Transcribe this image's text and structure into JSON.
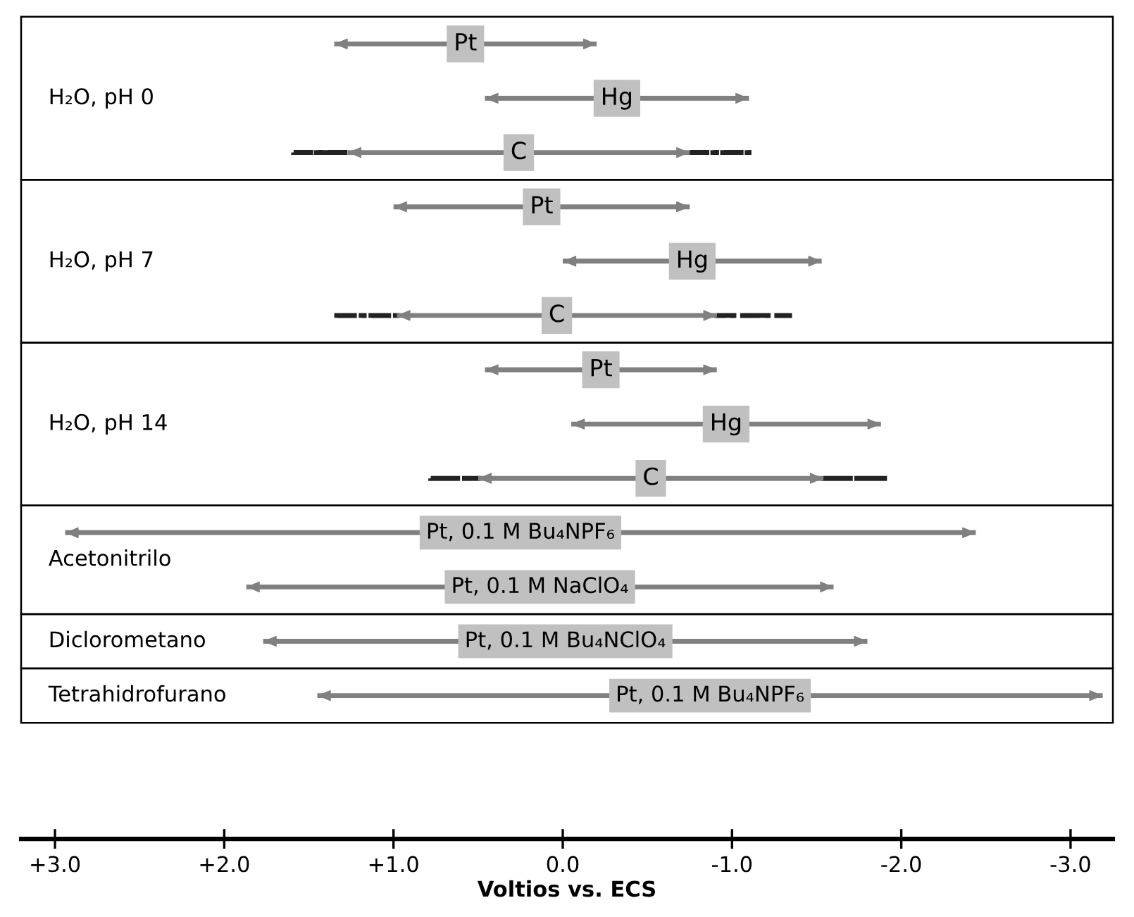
{
  "chart_data": {
    "type": "bar",
    "orientation": "horizontal",
    "categories": [
      "Pt",
      "Hg",
      "C",
      "Pt",
      "Hg",
      "C",
      "Pt",
      "Hg",
      "C",
      "Pt, 0.1 M Bu₄NPF₆",
      "Pt, 0.1 M NaClO₄",
      "Pt, 0.1 M Bu₄NClO₄",
      "Pt, 0.1 M Bu₄NPF₆"
    ],
    "annotations": [
      "H₂O, pH 0",
      "H₂O, pH 7",
      "H₂O, pH 14",
      "Acetonitrilo",
      "Diclorometano",
      "Tetrahidrofurano"
    ],
    "xlim": [
      3.2,
      -3.25
    ],
    "xlabel": "Voltios vs. ECS",
    "xticks": [
      {
        "value": 3,
        "label": "+3.0"
      },
      {
        "value": 2,
        "label": "+2.0"
      },
      {
        "value": 1,
        "label": "+1.0"
      },
      {
        "value": 0,
        "label": "0.0"
      },
      {
        "value": -1,
        "label": "-1.0"
      },
      {
        "value": -2,
        "label": "-2.0"
      },
      {
        "value": -3,
        "label": "-3.0"
      }
    ],
    "series": [
      {
        "color": "#222222",
        "line_style": "dashed",
        "values": [
          null,
          null,
          -0.32,
          null,
          null,
          -0.37,
          null,
          null,
          -0.28,
          null,
          null,
          null,
          null
        ],
        "base": [
          null,
          null,
          1.59,
          null,
          null,
          1.35,
          null,
          null,
          0.78,
          null,
          null,
          null,
          null
        ]
      },
      {
        "color": "#222222",
        "line_style": "dashed",
        "values": [
          null,
          null,
          -0.35,
          null,
          null,
          -0.43,
          null,
          null,
          -0.38,
          null,
          null,
          null,
          null
        ],
        "base": [
          null,
          null,
          -0.75,
          null,
          null,
          -0.91,
          null,
          null,
          -1.54,
          null,
          null,
          null,
          null
        ]
      },
      {
        "color": "#808080",
        "line_style": "solid",
        "values": [
          -1.55,
          -1.56,
          -2.02,
          -1.75,
          -1.53,
          -1.89,
          -1.37,
          -1.83,
          -2.04,
          -5.38,
          -3.47,
          -3.57,
          -4.64
        ],
        "base": [
          1.35,
          0.46,
          1.27,
          1.0,
          0.0,
          0.98,
          0.46,
          -0.05,
          0.5,
          2.94,
          1.87,
          1.77,
          1.45
        ]
      }
    ]
  }
}
